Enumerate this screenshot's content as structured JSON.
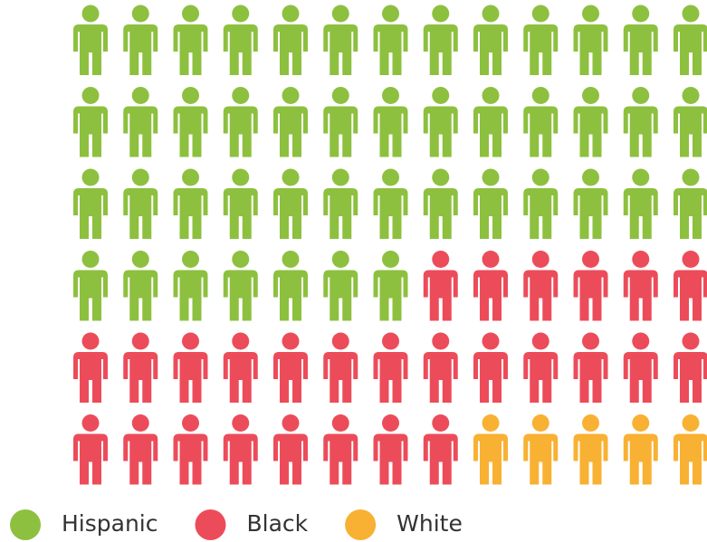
{
  "chart_data": {
    "type": "pictogram",
    "categories": [
      "Hispanic",
      "Black",
      "White"
    ],
    "values": [
      46,
      27,
      5
    ],
    "colors": [
      "#8dc03f",
      "#ec4c5a",
      "#f8b133"
    ],
    "legend": "bottom-left"
  }
}
